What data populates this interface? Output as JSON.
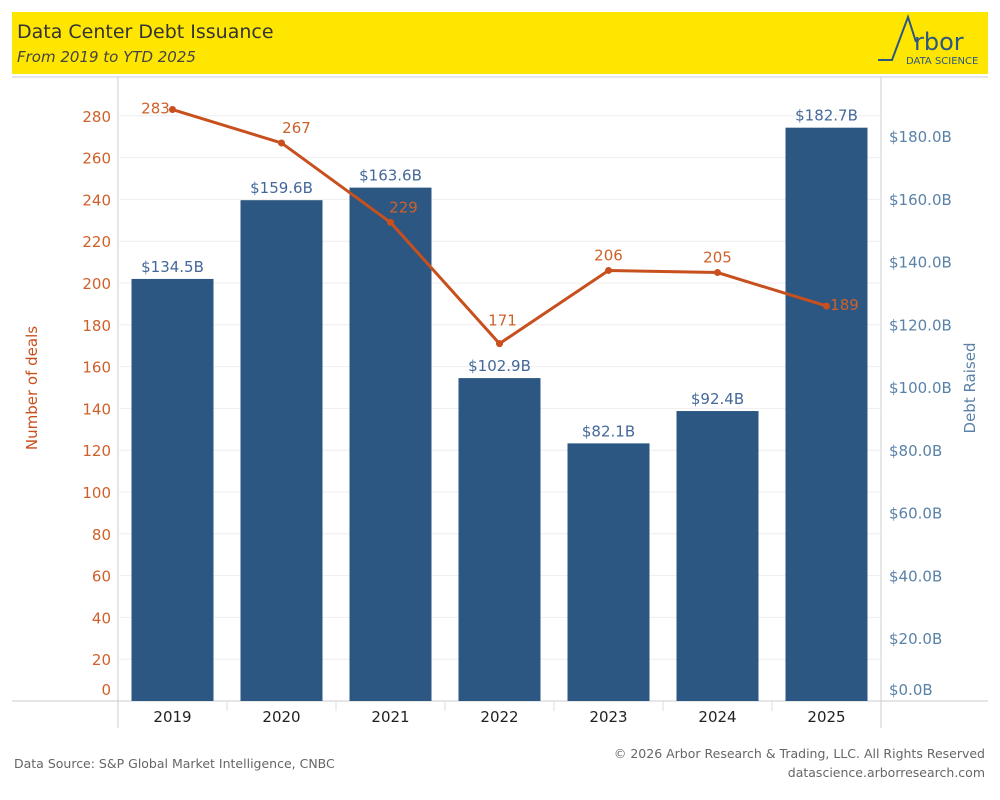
{
  "header": {
    "title": "Data Center Debt Issuance",
    "subtitle": "From 2019 to YTD 2025",
    "logo_text": "Arbor",
    "logo_sub": "DATA SCIENCE"
  },
  "colors": {
    "header_bg": "#FFE600",
    "bar": "#2C5782",
    "line": "#C8501E",
    "left_axis_text": "#D0602A",
    "right_axis_text": "#5A82A8",
    "bar_label": "#44689A"
  },
  "chart_data": {
    "type": "bar+line",
    "categories": [
      "2019",
      "2020",
      "2021",
      "2022",
      "2023",
      "2024",
      "2025"
    ],
    "series": [
      {
        "name": "Debt Raised",
        "type": "bar",
        "axis": "right",
        "values": [
          134.5,
          159.6,
          163.6,
          102.9,
          82.1,
          92.4,
          182.7
        ],
        "labels": [
          "$134.5B",
          "$159.6B",
          "$163.6B",
          "$102.9B",
          "$82.1B",
          "$92.4B",
          "$182.7B"
        ]
      },
      {
        "name": "Number of deals",
        "type": "line",
        "axis": "left",
        "values": [
          283,
          267,
          229,
          171,
          206,
          205,
          189
        ]
      }
    ],
    "left_axis": {
      "label": "Number of deals",
      "ticks": [
        0,
        20,
        40,
        60,
        80,
        100,
        120,
        140,
        160,
        180,
        200,
        220,
        240,
        260,
        280
      ]
    },
    "right_axis": {
      "label": "Debt Raised",
      "ticks": [
        "$0.0B",
        "$20.0B",
        "$40.0B",
        "$60.0B",
        "$80.0B",
        "$100.0B",
        "$120.0B",
        "$140.0B",
        "$160.0B",
        "$180.0B"
      ]
    },
    "grid": true
  },
  "footer": {
    "source": "Data Source: S&P Global Market Intelligence, CNBC",
    "copyright": "© 2026 Arbor Research & Trading, LLC. All Rights Reserved",
    "url": "datascience.arborresearch.com"
  }
}
